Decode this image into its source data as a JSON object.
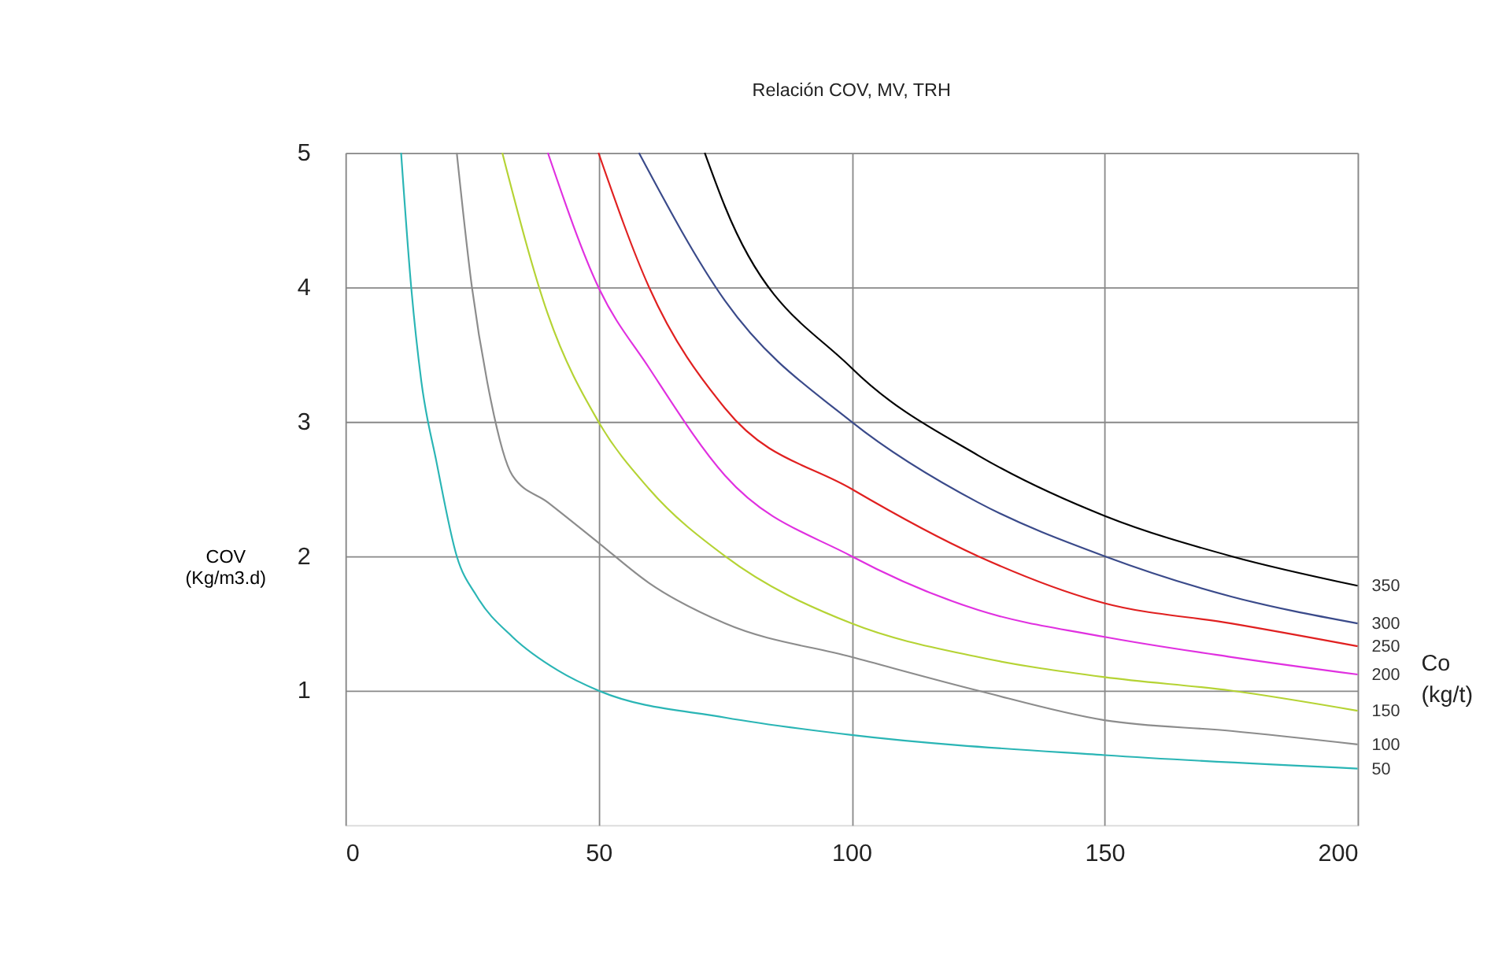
{
  "chart_data": {
    "type": "line",
    "title": "Relación COV, MV, TRH",
    "ylabel": "COV\n(Kg/m3.d)",
    "legend_title": "Co\n(kg/t)",
    "xlim": [
      0,
      200
    ],
    "ylim": [
      0,
      5
    ],
    "xticks": [
      0,
      50,
      100,
      150,
      200
    ],
    "yticks": [
      1,
      2,
      3,
      4,
      5
    ],
    "grid": true,
    "legend": false,
    "marker": "none",
    "line_style": "solid",
    "series": [
      {
        "name": "50",
        "color": "#2ab5b5",
        "x": [
          11,
          13,
          15,
          18,
          22,
          26,
          33,
          42,
          50,
          75,
          100,
          150,
          200
        ],
        "values": [
          5,
          4,
          3.3,
          2.7,
          2,
          1.7,
          1.4,
          1.15,
          1,
          0.8,
          0.67,
          0.52,
          0.42
        ]
      },
      {
        "name": "100",
        "color": "#8c8c8c",
        "x": [
          22,
          25,
          28,
          33,
          40,
          50,
          60,
          75,
          100,
          125,
          150,
          175,
          200
        ],
        "values": [
          5,
          4,
          3.3,
          2.6,
          2.4,
          2.1,
          1.8,
          1.5,
          1.25,
          1.0,
          0.78,
          0.7,
          0.6
        ]
      },
      {
        "name": "150",
        "color": "#b5d334",
        "x": [
          31,
          40,
          50,
          60,
          75,
          100,
          125,
          150,
          175,
          200
        ],
        "values": [
          5,
          3.8,
          3.0,
          2.5,
          2.0,
          1.5,
          1.25,
          1.1,
          1.0,
          0.85
        ]
      },
      {
        "name": "200",
        "color": "#e030e0",
        "x": [
          40,
          50,
          60,
          75,
          100,
          125,
          150,
          175,
          200
        ],
        "values": [
          5,
          4.0,
          3.4,
          2.6,
          2.0,
          1.6,
          1.4,
          1.25,
          1.12
        ]
      },
      {
        "name": "250",
        "color": "#e02020",
        "x": [
          50,
          60,
          75,
          100,
          125,
          150,
          175,
          200
        ],
        "values": [
          5,
          4.0,
          3.1,
          2.5,
          2.0,
          1.65,
          1.5,
          1.33
        ]
      },
      {
        "name": "300",
        "color": "#3a4a8a",
        "x": [
          58,
          75,
          100,
          125,
          150,
          175,
          200
        ],
        "values": [
          5,
          3.9,
          3.0,
          2.4,
          2.0,
          1.7,
          1.5
        ]
      },
      {
        "name": "350",
        "color": "#000000",
        "x": [
          71,
          75,
          100,
          125,
          150,
          175,
          200
        ],
        "values": [
          5,
          4.6,
          3.4,
          2.75,
          2.3,
          2.0,
          1.78
        ]
      }
    ]
  }
}
